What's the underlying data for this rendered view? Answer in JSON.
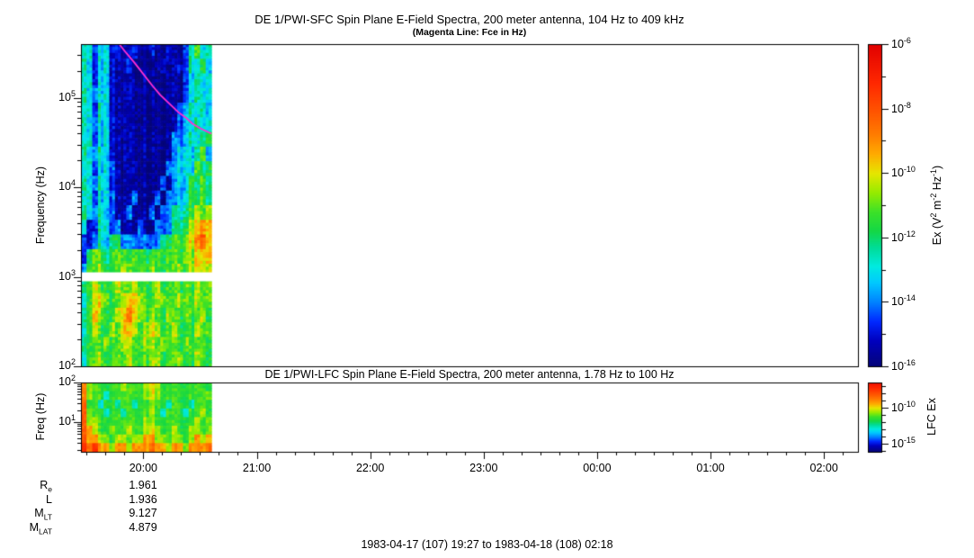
{
  "figure": {
    "footer": "1983-04-17 (107) 19:27 to 1983-04-18 (108) 02:18",
    "background": "#ffffff",
    "frame_color": "#000000"
  },
  "time_axis": {
    "start_label": "19:27",
    "end_label": "02:18",
    "total_min": 411,
    "data_duration_min": 69,
    "hour_ticks": [
      {
        "label": "20:00",
        "min": 33
      },
      {
        "label": "21:00",
        "min": 93
      },
      {
        "label": "22:00",
        "min": 153
      },
      {
        "label": "23:00",
        "min": 213
      },
      {
        "label": "00:00",
        "min": 273
      },
      {
        "label": "01:00",
        "min": 333
      },
      {
        "label": "02:00",
        "min": 393
      }
    ],
    "minor_tick_first_min": 3,
    "minor_tick_step_min": 10
  },
  "ephemeris": {
    "at_time": "20:00",
    "rows": [
      {
        "label": "R_(e)",
        "value": "1.961"
      },
      {
        "label": "L",
        "value": "1.936"
      },
      {
        "label": "M_(LT)",
        "value": "9.127"
      },
      {
        "label": "M_(LAT)",
        "value": "4.879"
      }
    ]
  },
  "chart_data": [
    {
      "type": "heatmap",
      "name": "SFC spectrogram",
      "title": "DE 1/PWI-SFC  Spin Plane E-Field Spectra, 200 meter antenna, 104 Hz to 409 kHz",
      "subtitle": "(Magenta Line: Fce in Hz)",
      "ylabel": "Frequency (Hz)",
      "ylog_range": [
        2.0,
        5.6
      ],
      "y_ticks": [
        {
          "label": "10^(5)",
          "log": 5
        },
        {
          "label": "10^(4)",
          "log": 4
        },
        {
          "label": "10^(3)",
          "log": 3
        },
        {
          "label": "10^(2)",
          "log": 2
        }
      ],
      "time_bin_min": 3,
      "white_gap_loghz": [
        2.95,
        3.05
      ],
      "value_units": "log10 Ex spectral density (V^2 m^-2 Hz^-1)",
      "value_range": [
        -16,
        -6
      ],
      "grid": [
        [
          -13.2,
          -12.6,
          -15,
          -13.2,
          -12.6,
          -15,
          -15,
          -15.7,
          -15.7,
          -15,
          -15.7,
          -15.7,
          -15,
          -15.7,
          -15.7,
          -15,
          -15.7,
          -15.7,
          -14.2,
          -12.6,
          -11.4,
          -13.2,
          -12
        ],
        [
          -12.6,
          -13.2,
          -15,
          -13.2,
          -12.6,
          -15,
          -15.7,
          -15.7,
          -15,
          -15.7,
          -15.7,
          -15.7,
          -15.7,
          -15.7,
          -15,
          -15.7,
          -15.7,
          -15,
          -14.2,
          -12.6,
          -13.2,
          -12,
          -13.2
        ],
        [
          -13.2,
          -12.6,
          -15,
          -13.2,
          -13.2,
          -15,
          -15.7,
          -15.7,
          -15.7,
          -15.7,
          -15.7,
          -15.7,
          -15.7,
          -15.7,
          -15.7,
          -15.7,
          -15.7,
          -15.7,
          -14.2,
          -13.2,
          -12.6,
          -13.2,
          -12.6
        ],
        [
          -12.6,
          -13.2,
          -14.2,
          -13.2,
          -12.6,
          -15,
          -15.7,
          -15.7,
          -15.7,
          -15.7,
          -15.7,
          -15.7,
          -15.7,
          -15.7,
          -15.7,
          -15.7,
          -15.7,
          -15.7,
          -14.2,
          -13.2,
          -12.6,
          -13.2,
          -12.6
        ],
        [
          -13.2,
          -12.6,
          -15,
          -12.6,
          -13.2,
          -15,
          -15.7,
          -15.7,
          -15.7,
          -15.7,
          -15.7,
          -15.7,
          -15.7,
          -15.7,
          -15.7,
          -15.7,
          -15.7,
          -14.2,
          -13.2,
          -12.6,
          -13.2,
          -12.6,
          -13.2
        ],
        [
          -12.6,
          -13.2,
          -14.2,
          -13.2,
          -12.6,
          -15,
          -15.7,
          -15.7,
          -15.7,
          -15.7,
          -15.7,
          -15.7,
          -15.7,
          -15.7,
          -15.7,
          -15.7,
          -15.7,
          -14.2,
          -13.2,
          -13.2,
          -12.6,
          -13.2,
          -12.6
        ],
        [
          -13.2,
          -12.6,
          -15,
          -13.2,
          -12.6,
          -15,
          -15.7,
          -15.7,
          -15.7,
          -15.7,
          -15.7,
          -15.7,
          -15.7,
          -15.7,
          -15.7,
          -15.7,
          -14.2,
          -14.2,
          -13.2,
          -12.6,
          -13.2,
          -12.6,
          -11.4
        ],
        [
          -12.6,
          -13.2,
          -14.2,
          -12.6,
          -13.2,
          -15,
          -15.7,
          -15.7,
          -15.7,
          -15.7,
          -15.7,
          -15.7,
          -15.7,
          -15.7,
          -15.7,
          -15.7,
          -14.2,
          -13.2,
          -12.6,
          -13.2,
          -12.6,
          -11.4,
          -13.2
        ],
        [
          -13.2,
          -12.6,
          -15,
          -13.2,
          -12.6,
          -14.2,
          -15.7,
          -15.7,
          -15.7,
          -15.7,
          -15.7,
          -15.7,
          -15.7,
          -15.7,
          -15.7,
          -14.2,
          -14.2,
          -13.2,
          -12.6,
          -13.2,
          -11.4,
          -12.6,
          -11.4
        ],
        [
          -12.6,
          -13.2,
          -14.2,
          -12.6,
          -13.2,
          -15,
          -15.7,
          -15.7,
          -15.7,
          -15.7,
          -15.7,
          -15.7,
          -15.7,
          -15.7,
          -14.2,
          -15.7,
          -14.2,
          -13.2,
          -13.2,
          -11.4,
          -12.6,
          -11.4,
          -12
        ],
        [
          -13.2,
          -12.6,
          -15,
          -13.2,
          -12.6,
          -14.2,
          -15.7,
          -15.7,
          -15.7,
          -14.2,
          -15.7,
          -15.7,
          -15.7,
          -14.2,
          -15.7,
          -14.2,
          -14.2,
          -13.2,
          -12.6,
          -11.4,
          -12,
          -11.4,
          -12
        ],
        [
          -12.6,
          -13.2,
          -14.2,
          -12.6,
          -13.2,
          -14.2,
          -15.7,
          -15.7,
          -14.2,
          -15.7,
          -15.7,
          -15.7,
          -14.2,
          -15.7,
          -14.2,
          -14.2,
          -12.6,
          -12.6,
          -12,
          -11.4,
          -10.6,
          -11.4,
          -10
        ],
        [
          -13.2,
          -15,
          -15,
          -12.6,
          -12.6,
          -14.2,
          -14.2,
          -15.7,
          -15.7,
          -15.7,
          -14.2,
          -15.7,
          -15.7,
          -14.2,
          -14.2,
          -14.2,
          -12.6,
          -12,
          -11.4,
          -10.6,
          -10,
          -9.2,
          -9.2
        ],
        [
          -15,
          -15,
          -14.2,
          -12.6,
          -13.2,
          -12,
          -12,
          -14.2,
          -14.2,
          -14.2,
          -14.2,
          -14.2,
          -14.2,
          -14.2,
          -12,
          -12,
          -11.4,
          -11.4,
          -10.6,
          -10,
          -9.2,
          -8.4,
          -9.2
        ],
        [
          -15,
          -12,
          -11.4,
          -11.4,
          -12,
          -11.4,
          -11.4,
          -11.4,
          -12,
          -11.4,
          -11.4,
          -12,
          -11.4,
          -11.4,
          -11.4,
          -11.4,
          -11.4,
          -11.4,
          -10.6,
          -10.6,
          -10,
          -10,
          -9.2
        ],
        [
          -14.2,
          -11.4,
          -11.4,
          -10.6,
          -11.4,
          -11.4,
          -11.4,
          -10.6,
          -11.4,
          -11.4,
          -11.4,
          -11.4,
          -10.6,
          -11.4,
          -11.4,
          -11.4,
          -11.4,
          -10.6,
          -11.4,
          -10.6,
          -10,
          -10.6,
          -10
        ],
        [
          -12.6,
          -11.4,
          -10.6,
          -11.4,
          -11.4,
          -11.4,
          -10.6,
          -11.4,
          -11.4,
          -10.6,
          -11.4,
          -11.4,
          -11.4,
          -10.6,
          -11.4,
          -11.4,
          -11.4,
          -11.4,
          -10.6,
          -11.4,
          -10.6,
          -11.4,
          -10.6
        ],
        [
          -13.2,
          -11.4,
          -10.6,
          -10,
          -10.6,
          -11.4,
          -11.4,
          -10.6,
          -10,
          -10,
          -10.6,
          -11.4,
          -11.4,
          -10.6,
          -10.6,
          -11.4,
          -11.4,
          -10.6,
          -10.6,
          -11.4,
          -10.6,
          -11.4,
          -10.6
        ],
        [
          -12.6,
          -11.4,
          -10,
          -10.6,
          -11.4,
          -11.4,
          -10.6,
          -10,
          -9.2,
          -10,
          -10.6,
          -11.4,
          -10.6,
          -11.4,
          -11.4,
          -10.6,
          -11.4,
          -11.4,
          -10.6,
          -11.4,
          -11.4,
          -10.6,
          -11.4
        ],
        [
          -13.2,
          -11.4,
          -10.6,
          -11.4,
          -11.4,
          -10.6,
          -11.4,
          -10,
          -10,
          -10.6,
          -11.4,
          -10.6,
          -10,
          -10.6,
          -11.4,
          -11.4,
          -10.6,
          -11.4,
          -11.4,
          -11.4,
          -10.6,
          -11.4,
          -10.6
        ],
        [
          -12.6,
          -11.4,
          -11.4,
          -11.4,
          -10.6,
          -11.4,
          -11.4,
          -10.6,
          -10.6,
          -11.4,
          -11.4,
          -10.6,
          -10.6,
          -11.4,
          -10.6,
          -11.4,
          -11.4,
          -11.4,
          -10.6,
          -11.4,
          -11.4,
          -11.4,
          -11.4
        ],
        [
          -13.2,
          -11.4,
          -11.4,
          -10.6,
          -11.4,
          -11.4,
          -11.4,
          -11.4,
          -10.6,
          -11.4,
          -11.4,
          -11.4,
          -10.6,
          -10.6,
          -11.4,
          -11.4,
          -11.4,
          -10.6,
          -11.4,
          -11.4,
          -10.6,
          -11.4,
          -11.4
        ]
      ],
      "fce_line": {
        "color": "#ff2fd2",
        "points_min_loghz": [
          [
            17.5,
            5.67
          ],
          [
            21,
            5.58
          ],
          [
            24,
            5.5
          ],
          [
            28,
            5.4
          ],
          [
            31,
            5.32
          ],
          [
            35,
            5.21
          ],
          [
            38,
            5.13
          ],
          [
            42,
            5.03
          ],
          [
            45,
            4.97
          ],
          [
            49,
            4.89
          ],
          [
            52,
            4.83
          ],
          [
            56,
            4.77
          ],
          [
            59,
            4.71
          ],
          [
            63,
            4.66
          ],
          [
            66,
            4.63
          ],
          [
            69,
            4.6
          ]
        ]
      },
      "colorbar": {
        "label": "Ex (V^(2) m^(-2) Hz^(-1))",
        "exp_range": [
          -6,
          -16
        ],
        "ticks": [
          {
            "label": "10^(-6)",
            "exp": -6
          },
          {
            "label": "10^(-8)",
            "exp": -8
          },
          {
            "label": "10^(-10)",
            "exp": -10
          },
          {
            "label": "10^(-12)",
            "exp": -12
          },
          {
            "label": "10^(-14)",
            "exp": -14
          },
          {
            "label": "10^(-16)",
            "exp": -16
          }
        ],
        "minor_exps": [
          -7,
          -9,
          -11,
          -13,
          -15
        ]
      }
    },
    {
      "type": "heatmap",
      "name": "LFC spectrogram",
      "title": "DE 1/PWI-LFC  Spin Plane E-Field Spectra, 200 meter antenna, 1.78 Hz to 100 Hz",
      "ylabel": "Freq (Hz)",
      "ylog_range": [
        0.25,
        2.0
      ],
      "y_ticks": [
        {
          "label": "10^(2)",
          "log": 2
        },
        {
          "label": "10^(1)",
          "log": 1
        }
      ],
      "time_bin_min": 3,
      "value_range": [
        -16,
        -6
      ],
      "grid": [
        [
          -9.2,
          -10.6,
          -11.4,
          -11.4,
          -11.4,
          -11.4,
          -11.4,
          -10.6,
          -11.4,
          -11.4,
          -11.4,
          -10.6,
          -10,
          -10.6,
          -11.4,
          -11.4,
          -11.4,
          -11.4,
          -11.4,
          -11.4,
          -11.4,
          -11.4,
          -11.4
        ],
        [
          -9.2,
          -10.6,
          -11.4,
          -11.4,
          -12.6,
          -11.4,
          -11.4,
          -11.4,
          -11.4,
          -11.4,
          -11.4,
          -10.6,
          -10,
          -10.6,
          -11.4,
          -11.4,
          -11.4,
          -11.4,
          -11.4,
          -11.4,
          -11.4,
          -11.4,
          -10.6
        ],
        [
          -8.4,
          -11.4,
          -11.4,
          -12.6,
          -11.4,
          -11.4,
          -12.6,
          -11.4,
          -11.4,
          -12.6,
          -11.4,
          -11.4,
          -10.6,
          -11.4,
          -11.4,
          -12.6,
          -11.4,
          -11.4,
          -11.4,
          -12.6,
          -11.4,
          -11.4,
          -11.4
        ],
        [
          -8.4,
          -10.6,
          -11.4,
          -11.4,
          -12.6,
          -11.4,
          -11.4,
          -12.6,
          -11.4,
          -11.4,
          -11.4,
          -11.4,
          -10.6,
          -11.4,
          -12.6,
          -11.4,
          -11.4,
          -11.4,
          -12.6,
          -11.4,
          -11.4,
          -10.6,
          -11.4
        ],
        [
          -8.4,
          -10.6,
          -10.6,
          -11.4,
          -11.4,
          -11.4,
          -11.4,
          -11.4,
          -11.4,
          -11.4,
          -11.4,
          -10.6,
          -10.6,
          -11.4,
          -11.4,
          -11.4,
          -11.4,
          -11.4,
          -11.4,
          -11.4,
          -10.6,
          -11.4,
          -10.6
        ],
        [
          -8.4,
          -9.2,
          -10.6,
          -11.4,
          -11.4,
          -10.6,
          -11.4,
          -11.4,
          -10.6,
          -11.4,
          -11.4,
          -10.6,
          -10,
          -10.6,
          -11.4,
          -11.4,
          -10.6,
          -11.4,
          -11.4,
          -10.6,
          -10.6,
          -11.4,
          -10.6
        ],
        [
          -8.4,
          -9.2,
          -9.2,
          -10.6,
          -10.6,
          -11.4,
          -10.6,
          -10.6,
          -11.4,
          -10.6,
          -10.6,
          -9.2,
          -9.2,
          -10.6,
          -10.6,
          -11.4,
          -10.6,
          -10.6,
          -11.4,
          -10.6,
          -9.2,
          -10.6,
          -9.2
        ],
        [
          -7.6,
          -8.4,
          -7.6,
          -9.2,
          -9.2,
          -10.6,
          -9.2,
          -9.2,
          -10.6,
          -9.2,
          -9.2,
          -9.2,
          -8.4,
          -9.2,
          -9.2,
          -10.6,
          -9.2,
          -9.2,
          -10.6,
          -9.2,
          -9.2,
          -9.2,
          -8.4
        ]
      ],
      "colorbar": {
        "label": "LFC Ex",
        "exp_range": [
          -6.5,
          -16.1
        ],
        "ticks": [
          {
            "label": "10^(-10)",
            "exp": -10
          },
          {
            "label": "10^(-15)",
            "exp": -15
          }
        ],
        "minor_exps": [
          -7,
          -8,
          -9,
          -11,
          -12,
          -13,
          -14,
          -16
        ]
      }
    }
  ]
}
